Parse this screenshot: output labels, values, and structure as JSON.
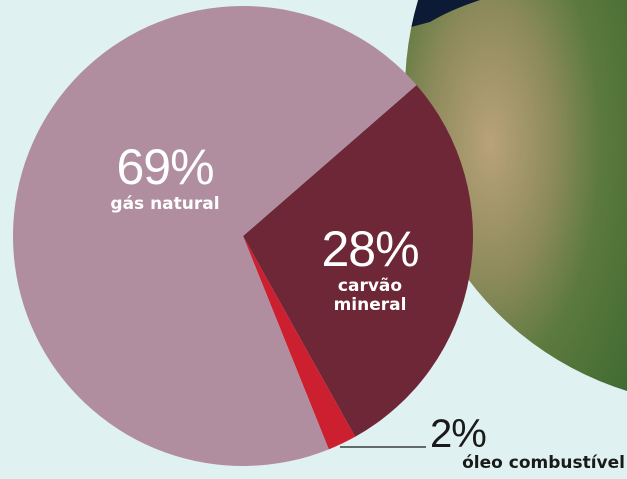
{
  "chart_data": {
    "type": "pie",
    "categories": [
      "gás natural",
      "carvão mineral",
      "óleo combustível"
    ],
    "values": [
      69,
      28,
      2
    ],
    "value_labels": [
      "69%",
      "28%",
      "2%"
    ],
    "colors": [
      "#b08e9f",
      "#6e2736",
      "#cc1f2f"
    ]
  }
}
